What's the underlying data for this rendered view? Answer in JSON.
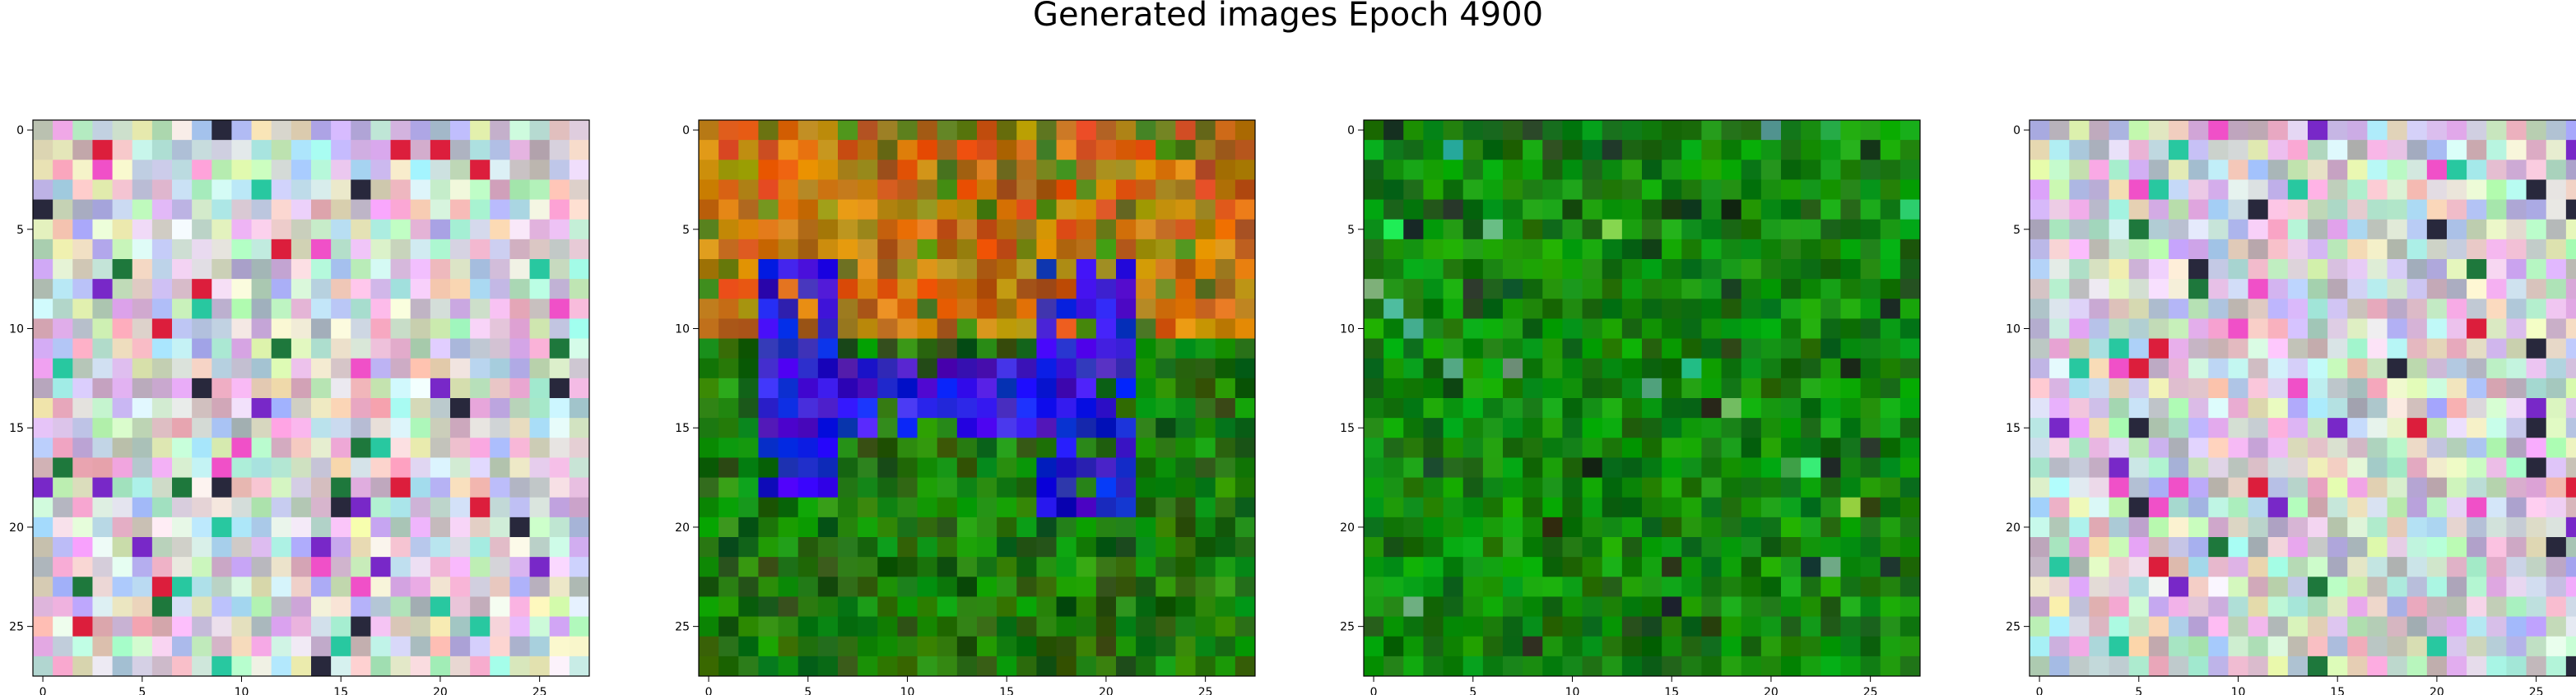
{
  "title": "Generated images Epoch 4900",
  "chart_data": [
    {
      "type": "heatmap",
      "description_of_content": "28x28 RGB generated image, light multicolor noise",
      "palette": "noise",
      "rows": 28,
      "cols": 28,
      "xlim": [
        -0.5,
        27.5
      ],
      "ylim": [
        27.5,
        -0.5
      ],
      "xticks": [
        0,
        5,
        10,
        15,
        20,
        25
      ],
      "yticks": [
        0,
        5,
        10,
        15,
        20,
        25
      ],
      "seed": 11
    },
    {
      "type": "heatmap",
      "description_of_content": "28x28 RGB generated image: orange/olive top, blue shape middle, green bottom",
      "palette": "blue_orange_green",
      "rows": 28,
      "cols": 28,
      "xlim": [
        -0.5,
        27.5
      ],
      "ylim": [
        27.5,
        -0.5
      ],
      "xticks": [
        0,
        5,
        10,
        15,
        20,
        25
      ],
      "yticks": [
        0,
        5,
        10,
        15,
        20,
        25
      ],
      "seed": 23
    },
    {
      "type": "heatmap",
      "description_of_content": "28x28 RGB generated image, mostly green",
      "palette": "green",
      "rows": 28,
      "cols": 28,
      "xlim": [
        -0.5,
        27.5
      ],
      "ylim": [
        27.5,
        -0.5
      ],
      "xticks": [
        0,
        5,
        10,
        15,
        20,
        25
      ],
      "yticks": [
        0,
        5,
        10,
        15,
        20,
        25
      ],
      "seed": 37
    },
    {
      "type": "heatmap",
      "description_of_content": "28x28 RGB generated image, light multicolor noise",
      "palette": "noise",
      "rows": 28,
      "cols": 28,
      "xlim": [
        -0.5,
        27.5
      ],
      "ylim": [
        27.5,
        -0.5
      ],
      "xticks": [
        0,
        5,
        10,
        15,
        20,
        25
      ],
      "yticks": [
        0,
        5,
        10,
        15,
        20,
        25
      ],
      "seed": 53
    }
  ]
}
